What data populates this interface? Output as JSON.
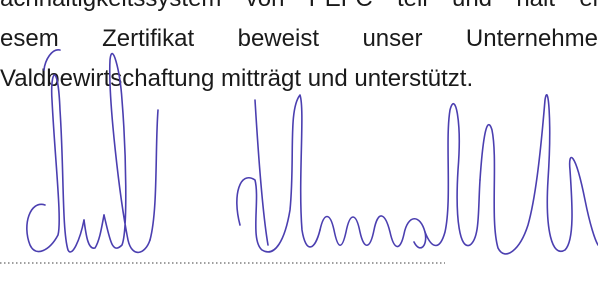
{
  "document": {
    "lines": [
      "achhaltigkeitssystem von PEFC teil und hält ei",
      "esem Zertifikat beweist unser Unternehme",
      "Valdbewirtschaftung mitträgt und unterstützt."
    ]
  }
}
